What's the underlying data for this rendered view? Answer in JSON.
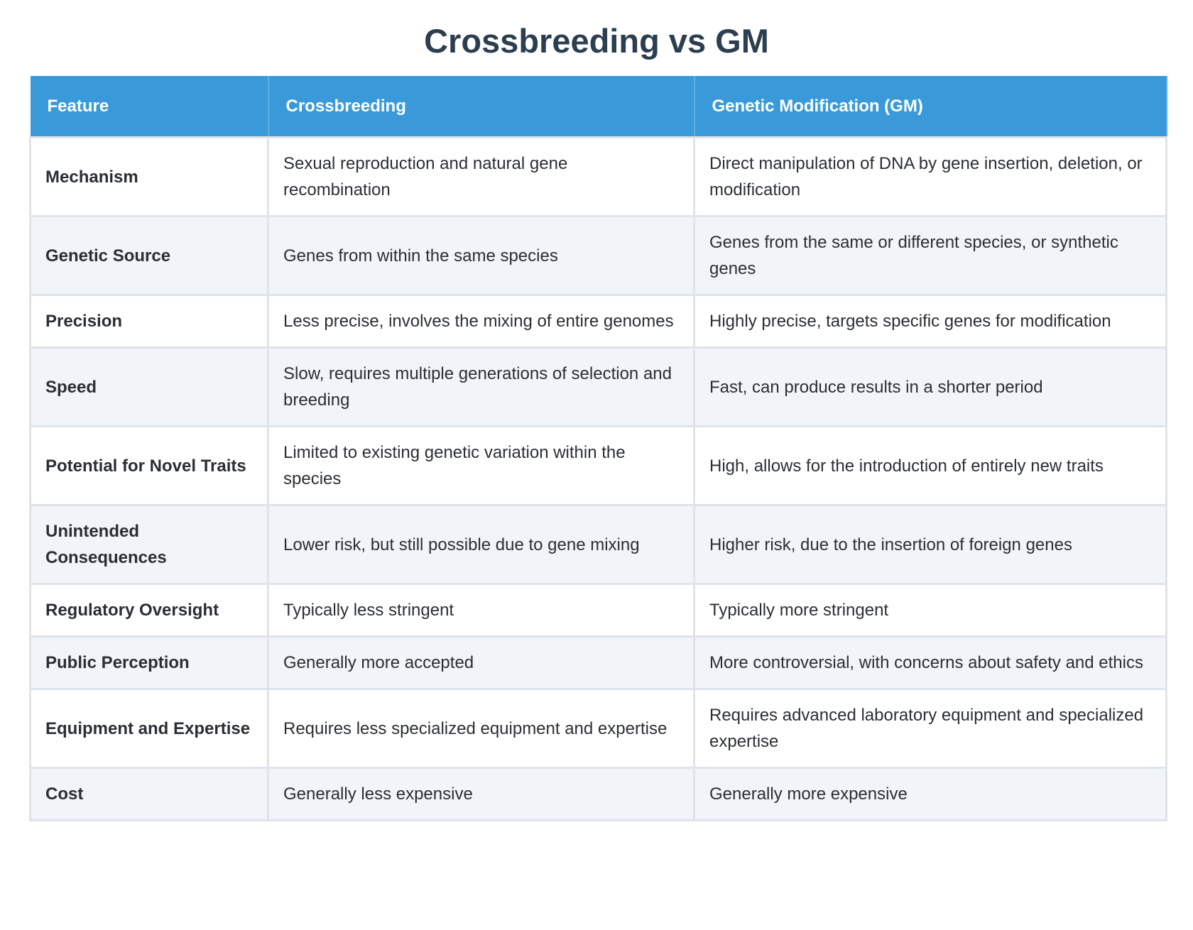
{
  "header": {
    "title": "Crossbreeding vs GM"
  },
  "table": {
    "columns": [
      "Feature",
      "Crossbreeding",
      "Genetic Modification (GM)"
    ],
    "rows": [
      [
        "Mechanism",
        "Sexual reproduction and natural gene recombination",
        "Direct manipulation of DNA by gene insertion, deletion, or modification"
      ],
      [
        "Genetic Source",
        "Genes from within the same species",
        "Genes from the same or different species, or synthetic genes"
      ],
      [
        "Precision",
        "Less precise, involves the mixing of entire genomes",
        "Highly precise, targets specific genes for modification"
      ],
      [
        "Speed",
        "Slow, requires multiple generations of selection and breeding",
        "Fast, can produce results in a shorter period"
      ],
      [
        "Potential for Novel Traits",
        "Limited to existing genetic variation within the species",
        "High, allows for the introduction of entirely new traits"
      ],
      [
        "Unintended Consequences",
        "Lower risk, but still possible due to gene mixing",
        "Higher risk, due to the insertion of foreign genes"
      ],
      [
        "Regulatory Oversight",
        "Typically less stringent",
        "Typically more stringent"
      ],
      [
        "Public Perception",
        "Generally more accepted",
        "More controversial, with concerns about safety and ethics"
      ],
      [
        "Equipment and Expertise",
        "Requires less specialized equipment and expertise",
        "Requires advanced laboratory equipment and specialized expertise"
      ],
      [
        "Cost",
        "Generally less expensive",
        "Generally more expensive"
      ]
    ]
  }
}
